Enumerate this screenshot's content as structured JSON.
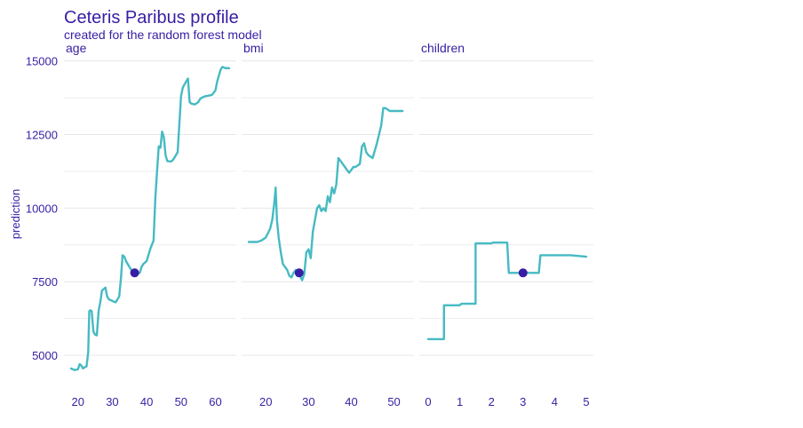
{
  "title": "Ceteris Paribus profile",
  "subtitle": "created for the random forest model",
  "colors": {
    "line": "#46bac2",
    "point": "#371ea3",
    "text": "#371ea3",
    "grid": "#e6e6ea"
  },
  "chart_data": {
    "type": "line",
    "ylabel": "prediction",
    "ylim": [
      4400,
      15200
    ],
    "yticks": [
      5000,
      7500,
      10000,
      12500,
      15000
    ],
    "ytick_labels": [
      "5000",
      "7500",
      "10000",
      "12500",
      "15000"
    ],
    "grid": true,
    "panels": [
      {
        "name": "age",
        "xlim": [
          18,
          64
        ],
        "xticks": [
          20,
          30,
          40,
          50,
          60
        ],
        "xtick_labels": [
          "20",
          "30",
          "40",
          "50",
          "60"
        ],
        "x": [
          18,
          19,
          20,
          20.5,
          21,
          21.5,
          22,
          22.5,
          23,
          23.3,
          23.6,
          24,
          24.5,
          25,
          25.5,
          26,
          26.5,
          27,
          27.5,
          28,
          28.5,
          29,
          30,
          30.5,
          31,
          32,
          32.5,
          33,
          33.5,
          34,
          34.5,
          35,
          36,
          36.5,
          37,
          38,
          38.5,
          39,
          40,
          40.5,
          41,
          42,
          42.5,
          43,
          43.5,
          44,
          44.5,
          45,
          45.5,
          46,
          47,
          47.5,
          48,
          49,
          50,
          50.5,
          51,
          51.5,
          52,
          52.5,
          53,
          54,
          55,
          55.5,
          56,
          57,
          58,
          59,
          60,
          60.5,
          61,
          61.5,
          62,
          63,
          63.5,
          64
        ],
        "y": [
          4550,
          4500,
          4520,
          4700,
          4650,
          4550,
          4600,
          4620,
          5100,
          6500,
          6530,
          6500,
          5800,
          5700,
          5680,
          6500,
          6800,
          7200,
          7250,
          7300,
          7000,
          6900,
          6850,
          6820,
          6800,
          7000,
          7600,
          8400,
          8350,
          8200,
          8100,
          8000,
          7800,
          7760,
          7750,
          7800,
          8000,
          8100,
          8200,
          8400,
          8600,
          8900,
          10300,
          11200,
          12100,
          12050,
          12600,
          12400,
          11800,
          11600,
          11580,
          11620,
          11700,
          11900,
          13800,
          14100,
          14200,
          14300,
          14400,
          13600,
          13550,
          13520,
          13600,
          13700,
          13750,
          13800,
          13820,
          13850,
          14000,
          14300,
          14500,
          14700,
          14800,
          14750,
          14760,
          14750
        ],
        "observation": {
          "x": 36.5,
          "y": 7800
        }
      },
      {
        "name": "bmi",
        "xlim": [
          16,
          53
        ],
        "xticks": [
          20,
          30,
          40,
          50
        ],
        "xtick_labels": [
          "20",
          "30",
          "40",
          "50"
        ],
        "x": [
          16,
          17,
          18,
          19,
          20,
          21,
          21.5,
          22,
          22.3,
          22.6,
          23,
          23.5,
          24,
          24.5,
          25,
          25.5,
          26,
          26.5,
          27,
          27.5,
          28,
          28.5,
          29,
          29.5,
          30,
          30.5,
          31,
          32,
          32.5,
          33,
          33.5,
          34,
          34.5,
          35,
          35.5,
          36,
          36.5,
          37,
          38,
          38.5,
          39,
          39.5,
          40,
          40.5,
          41,
          42,
          42.5,
          43,
          43.5,
          44,
          45,
          46,
          46.5,
          47,
          47.5,
          48,
          49,
          50,
          52
        ],
        "y": [
          8850,
          8850,
          8850,
          8900,
          9000,
          9300,
          9600,
          10200,
          10700,
          9600,
          9000,
          8500,
          8100,
          8000,
          7900,
          7700,
          7650,
          7800,
          7900,
          7800,
          7700,
          7550,
          7750,
          8500,
          8600,
          8300,
          9200,
          10000,
          10100,
          9900,
          10000,
          9900,
          10400,
          10200,
          10700,
          10500,
          10800,
          11700,
          11500,
          11400,
          11300,
          11200,
          11300,
          11400,
          11400,
          11500,
          12100,
          12200,
          11900,
          11800,
          11700,
          12200,
          12500,
          12800,
          13400,
          13400,
          13300,
          13300,
          13300
        ],
        "observation": {
          "x": 27.8,
          "y": 7800
        }
      },
      {
        "name": "children",
        "xlim": [
          0,
          5
        ],
        "xticks": [
          0,
          1,
          2,
          3,
          4,
          5
        ],
        "xtick_labels": [
          "0",
          "1",
          "2",
          "3",
          "4",
          "5"
        ],
        "x": [
          0,
          0.5,
          0.5,
          1,
          1.05,
          1.5,
          1.5,
          1.55,
          2,
          2.05,
          2.5,
          2.55,
          3.05,
          3.5,
          3.55,
          4.5,
          5
        ],
        "y": [
          5550,
          5550,
          6700,
          6700,
          6750,
          6750,
          8800,
          8800,
          8800,
          8830,
          8830,
          7800,
          7800,
          7800,
          8400,
          8400,
          8350
        ],
        "observation": {
          "x": 3,
          "y": 7800
        }
      }
    ]
  }
}
